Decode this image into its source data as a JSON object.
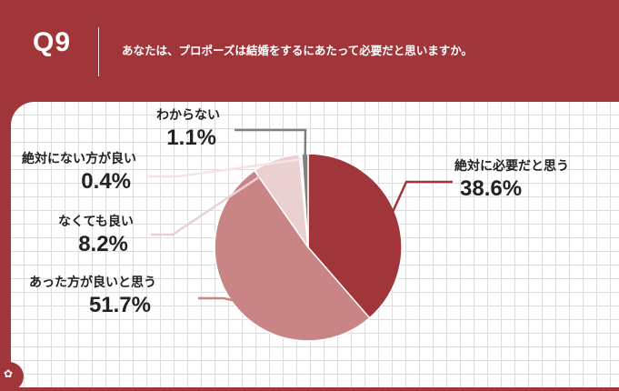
{
  "header": {
    "qnum": "Q9",
    "question": "あなたは、プロポーズは結婚をするにあたって必要だと思いますか。"
  },
  "colors": {
    "background": "#a1363a",
    "slice_1": "#a1363a",
    "slice_2": "#c98486",
    "slice_3": "#ead0d0",
    "slice_4": "#f4e4e4",
    "slice_5": "#808080"
  },
  "chart_data": {
    "type": "pie",
    "title": "",
    "slices": [
      {
        "label": "絶対に必要だと思う",
        "value": 38.6,
        "display": "38.6%"
      },
      {
        "label": "あった方が良いと思う",
        "value": 51.7,
        "display": "51.7%"
      },
      {
        "label": "なくても良い",
        "value": 8.2,
        "display": "8.2%"
      },
      {
        "label": "絶対にない方が良い",
        "value": 0.4,
        "display": "0.4%"
      },
      {
        "label": "わからない",
        "value": 1.1,
        "display": "1.1%"
      }
    ]
  }
}
